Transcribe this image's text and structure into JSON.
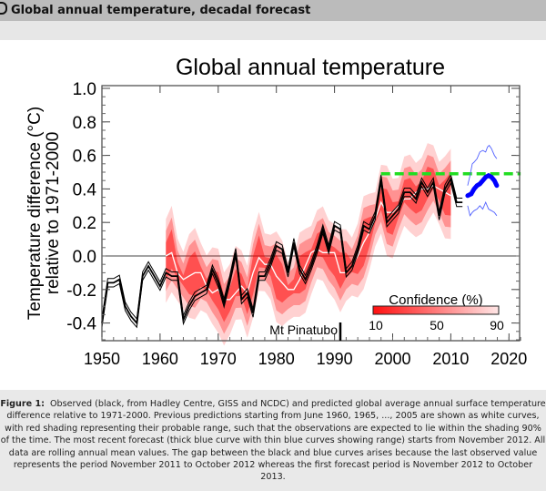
{
  "page": {
    "title": "Global annual temperature, decadal forecast"
  },
  "caption": {
    "label": "Figure 1:",
    "text": "Observed (black, from Hadley Centre, GISS and NCDC) and predicted global average annual surface temperature difference relative to 1971-2000. Previous predictions starting from June 1960, 1965, ..., 2005 are shown as white curves, with red shading representing their probable range, such that the observations are expected to lie within the shading 90% of the time. The most recent forecast (thick blue curve with thin blue curves showing range) starts from November 2012. All data are rolling annual mean values. The gap between the black and blue curves arises because the last observed value represents the period November 2011 to October 2012 whereas the first forecast period is November 2012 to October 2013."
  },
  "chart_data": {
    "type": "line",
    "title": "Global annual temperature",
    "ylabel": [
      "Temperature difference (°C)",
      "relative to 1971-2000"
    ],
    "xlim": [
      1950,
      2022
    ],
    "ylim": [
      -0.5,
      1.02
    ],
    "xticks": [
      "1950",
      "1960",
      "1970",
      "1980",
      "1990",
      "2000",
      "2010",
      "2020"
    ],
    "yticks": [
      "-0.4",
      "-0.2",
      "0.0",
      "0.2",
      "0.4",
      "0.6",
      "0.8",
      "1.0"
    ],
    "annotation": "Mt Pinatubo",
    "annotation_year": 1991,
    "legend": {
      "title": "Confidence (%)",
      "ticks": [
        "10",
        "50",
        "90"
      ]
    },
    "colors": {
      "observed": "#000000",
      "hindcast": "#ffffff",
      "shading": "#ff0000",
      "forecast": "#0000ff",
      "reference": "#22dd22"
    },
    "series": [
      {
        "role": "observed",
        "x": [
          1950,
          1951,
          1952,
          1953,
          1954,
          1955,
          1956,
          1957,
          1958,
          1959,
          1960,
          1961,
          1962,
          1963,
          1964,
          1965,
          1966,
          1967,
          1968,
          1969,
          1970,
          1971,
          1972,
          1973,
          1974,
          1975,
          1976,
          1977,
          1978,
          1979,
          1980,
          1981,
          1982,
          1983,
          1984,
          1985,
          1986,
          1987,
          1988,
          1989,
          1990,
          1991,
          1992,
          1993,
          1994,
          1995,
          1996,
          1997,
          1998,
          1999,
          2000,
          2001,
          2002,
          2003,
          2004,
          2005,
          2006,
          2007,
          2008,
          2009,
          2010,
          2011,
          2012
        ],
        "y": [
          -0.4,
          -0.16,
          -0.16,
          -0.14,
          -0.3,
          -0.36,
          -0.4,
          -0.12,
          -0.06,
          -0.12,
          -0.18,
          -0.1,
          -0.12,
          -0.12,
          -0.38,
          -0.3,
          -0.24,
          -0.22,
          -0.2,
          -0.08,
          -0.16,
          -0.28,
          -0.14,
          0.02,
          -0.26,
          -0.22,
          -0.34,
          -0.12,
          -0.12,
          -0.04,
          0.06,
          0.04,
          -0.1,
          0.08,
          -0.08,
          -0.14,
          -0.06,
          0.04,
          0.16,
          0.04,
          0.18,
          0.16,
          -0.1,
          -0.06,
          0.04,
          0.18,
          0.16,
          0.24,
          0.46,
          0.2,
          0.24,
          0.28,
          0.38,
          0.38,
          0.34,
          0.44,
          0.38,
          0.44,
          0.24,
          0.4,
          0.46,
          0.32,
          0.32
        ]
      },
      {
        "role": "hindcast",
        "x": [
          1961,
          1962,
          1963,
          1964,
          1965,
          1966,
          1967,
          1968,
          1969,
          1970,
          1971,
          1972,
          1973,
          1974,
          1975,
          1976,
          1977,
          1978,
          1979,
          1980,
          1981,
          1982,
          1983,
          1984,
          1985,
          1986,
          1987,
          1988,
          1989,
          1990,
          1991,
          1992,
          1993,
          1994,
          1995,
          1996,
          1997,
          1998,
          1999,
          2000,
          2001,
          2002,
          2003,
          2004,
          2005,
          2006,
          2007,
          2008,
          2009,
          2010
        ],
        "y": [
          0.0,
          0.02,
          -0.1,
          -0.14,
          -0.12,
          -0.1,
          -0.1,
          -0.18,
          -0.22,
          -0.2,
          -0.26,
          -0.26,
          -0.22,
          -0.18,
          -0.22,
          -0.1,
          -0.01,
          -0.05,
          -0.05,
          -0.12,
          -0.16,
          -0.2,
          -0.2,
          -0.14,
          -0.06,
          0.02,
          0.04,
          0.02,
          0.02,
          0.02,
          -0.1,
          -0.1,
          -0.06,
          0.0,
          0.08,
          0.14,
          0.22,
          0.32,
          0.26,
          0.26,
          0.3,
          0.34,
          0.34,
          0.38,
          0.4,
          0.4,
          0.42,
          0.4,
          0.38,
          0.36
        ]
      },
      {
        "role": "forecast",
        "x": [
          2012.9,
          2013.5,
          2014,
          2014.5,
          2015,
          2015.5,
          2016,
          2016.5,
          2017,
          2017.5,
          2017.9
        ],
        "y": [
          0.36,
          0.37,
          0.4,
          0.42,
          0.43,
          0.45,
          0.47,
          0.48,
          0.47,
          0.45,
          0.42
        ]
      },
      {
        "role": "forecast-upper",
        "x": [
          2012.9,
          2013.3,
          2013.7,
          2014,
          2014.5,
          2015,
          2015.5,
          2016,
          2016.3,
          2016.6,
          2017,
          2017.5,
          2017.9
        ],
        "y": [
          0.42,
          0.48,
          0.55,
          0.56,
          0.58,
          0.62,
          0.63,
          0.62,
          0.65,
          0.66,
          0.64,
          0.6,
          0.58
        ]
      },
      {
        "role": "forecast-lower",
        "x": [
          2012.9,
          2013.3,
          2013.7,
          2014,
          2014.5,
          2015,
          2015.5,
          2016,
          2016.5,
          2017,
          2017.5,
          2017.9
        ],
        "y": [
          0.3,
          0.24,
          0.26,
          0.27,
          0.28,
          0.3,
          0.28,
          0.32,
          0.28,
          0.27,
          0.26,
          0.24
        ]
      },
      {
        "role": "reference",
        "x": [
          1998,
          2022
        ],
        "y": [
          0.49,
          0.49
        ]
      }
    ]
  }
}
